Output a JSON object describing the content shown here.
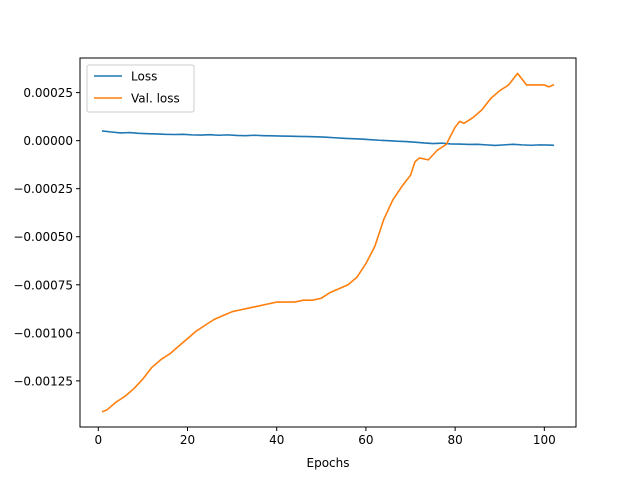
{
  "chart_data": {
    "type": "line",
    "title": "",
    "xlabel": "Epochs",
    "ylabel": "",
    "xlim": [
      -4.1,
      107.1
    ],
    "ylim": [
      -0.00149,
      0.00043
    ],
    "x_ticks": [
      0,
      20,
      40,
      60,
      80,
      100
    ],
    "x_tick_labels": [
      "0",
      "20",
      "40",
      "60",
      "80",
      "100"
    ],
    "y_ticks": [
      0.00025,
      0.0,
      -0.00025,
      -0.0005,
      -0.00075,
      -0.001,
      -0.00125
    ],
    "y_tick_labels": [
      "0.00025",
      "0.00000",
      "−0.00025",
      "−0.00050",
      "−0.00075",
      "−0.00100",
      "−0.00125"
    ],
    "grid": false,
    "legend_position": "top-left",
    "series": [
      {
        "name": "Loss",
        "color": "#1f77b4",
        "x": [
          1,
          3,
          5,
          7,
          9,
          11,
          13,
          15,
          17,
          19,
          21,
          23,
          25,
          27,
          29,
          31,
          33,
          35,
          37,
          39,
          41,
          43,
          45,
          47,
          49,
          51,
          53,
          55,
          57,
          59,
          61,
          63,
          65,
          67,
          69,
          71,
          73,
          75,
          77,
          79,
          81,
          83,
          85,
          87,
          89,
          91,
          93,
          95,
          97,
          99,
          101,
          102
        ],
        "y": [
          5e-05,
          4.5e-05,
          4e-05,
          4.2e-05,
          3.8e-05,
          3.6e-05,
          3.5e-05,
          3.3e-05,
          3.2e-05,
          3.3e-05,
          3e-05,
          2.9e-05,
          3.1e-05,
          2.8e-05,
          3e-05,
          2.7e-05,
          2.6e-05,
          2.8e-05,
          2.6e-05,
          2.5e-05,
          2.4e-05,
          2.3e-05,
          2.2e-05,
          2.1e-05,
          2e-05,
          1.8e-05,
          1.5e-05,
          1.2e-05,
          1e-05,
          8e-06,
          5e-06,
          2e-06,
          0.0,
          -3e-06,
          -5e-06,
          -8e-06,
          -1.2e-05,
          -1.5e-05,
          -1.3e-05,
          -1.7e-05,
          -1.8e-05,
          -2e-05,
          -1.9e-05,
          -2.2e-05,
          -2.5e-05,
          -2.2e-05,
          -1.9e-05,
          -2.2e-05,
          -2.4e-05,
          -2.2e-05,
          -2.3e-05,
          -2.4e-05
        ]
      },
      {
        "name": "Val. loss",
        "color": "#ff7f0e",
        "x": [
          1,
          2,
          4,
          6,
          8,
          10,
          12,
          14,
          16,
          18,
          20,
          22,
          24,
          26,
          28,
          30,
          32,
          34,
          36,
          38,
          40,
          42,
          44,
          46,
          48,
          50,
          52,
          54,
          56,
          58,
          60,
          62,
          64,
          66,
          68,
          70,
          71,
          72,
          74,
          76,
          78,
          80,
          81,
          82,
          84,
          86,
          88,
          90,
          92,
          94,
          96,
          98,
          100,
          101,
          102
        ],
        "y": [
          -0.00141,
          -0.0014,
          -0.00136,
          -0.00133,
          -0.00129,
          -0.00124,
          -0.00118,
          -0.00114,
          -0.00111,
          -0.00107,
          -0.00103,
          -0.00099,
          -0.00096,
          -0.00093,
          -0.00091,
          -0.00089,
          -0.00088,
          -0.00087,
          -0.00086,
          -0.00085,
          -0.00084,
          -0.00084,
          -0.00084,
          -0.00083,
          -0.00083,
          -0.00082,
          -0.00079,
          -0.00077,
          -0.00075,
          -0.00071,
          -0.00064,
          -0.00055,
          -0.00041,
          -0.00031,
          -0.00024,
          -0.00018,
          -0.00011,
          -9e-05,
          -0.0001,
          -5e-05,
          -2e-05,
          7e-05,
          0.0001,
          9e-05,
          0.00012,
          0.00016,
          0.00022,
          0.00026,
          0.00029,
          0.00035,
          0.00029,
          0.00029,
          0.00029,
          0.00028,
          0.00029
        ]
      }
    ]
  }
}
